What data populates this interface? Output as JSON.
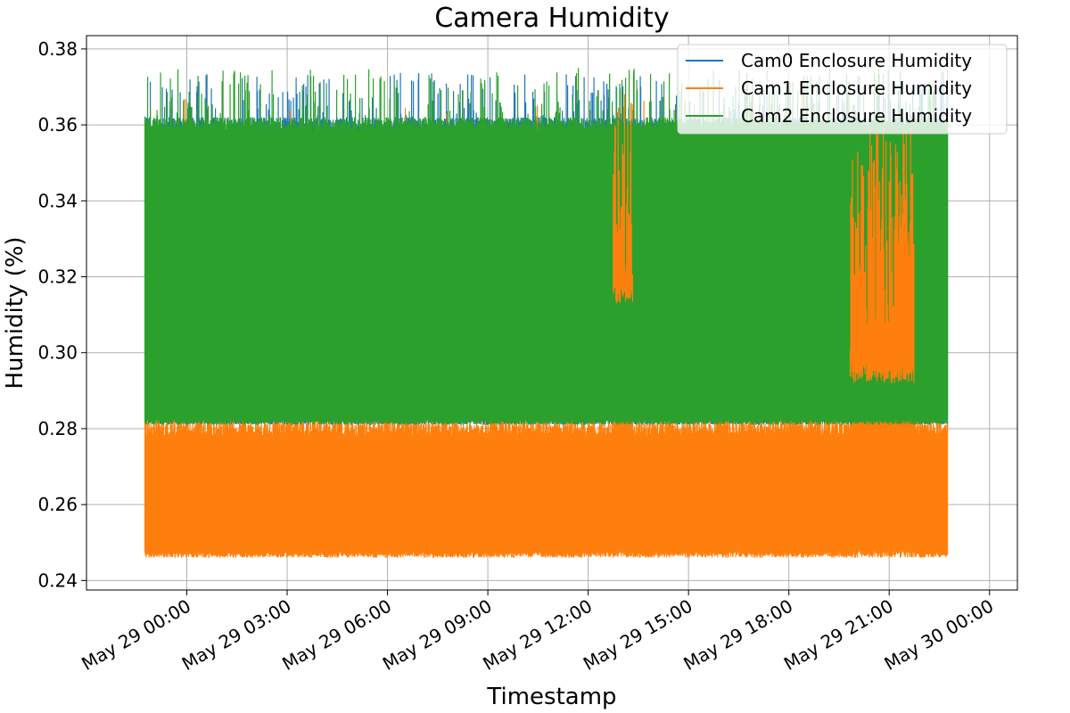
{
  "chart_data": {
    "type": "line",
    "title": "Camera Humidity",
    "xlabel": "Timestamp",
    "ylabel": "Humidity (%)",
    "x_range": [
      "2024-05-28T21:00:00",
      "2024-05-30T00:50:00"
    ],
    "data_x_range": [
      "2024-05-28T22:45:00",
      "2024-05-29T22:45:00"
    ],
    "ylim": [
      0.2375,
      0.3835
    ],
    "x_ticks": [
      {
        "t": "2024-05-29T00:00:00",
        "label": "May 29 00:00"
      },
      {
        "t": "2024-05-29T03:00:00",
        "label": "May 29 03:00"
      },
      {
        "t": "2024-05-29T06:00:00",
        "label": "May 29 06:00"
      },
      {
        "t": "2024-05-29T09:00:00",
        "label": "May 29 09:00"
      },
      {
        "t": "2024-05-29T12:00:00",
        "label": "May 29 12:00"
      },
      {
        "t": "2024-05-29T15:00:00",
        "label": "May 29 15:00"
      },
      {
        "t": "2024-05-29T18:00:00",
        "label": "May 29 18:00"
      },
      {
        "t": "2024-05-29T21:00:00",
        "label": "May 29 21:00"
      },
      {
        "t": "2024-05-30T00:00:00",
        "label": "May 30 00:00"
      }
    ],
    "y_ticks": [
      {
        "v": 0.24,
        "label": "0.24"
      },
      {
        "v": 0.26,
        "label": "0.26"
      },
      {
        "v": 0.28,
        "label": "0.28"
      },
      {
        "v": 0.3,
        "label": "0.30"
      },
      {
        "v": 0.32,
        "label": "0.32"
      },
      {
        "v": 0.34,
        "label": "0.34"
      },
      {
        "v": 0.36,
        "label": "0.36"
      },
      {
        "v": 0.38,
        "label": "0.38"
      }
    ],
    "grid": true,
    "legend_position": "upper-right",
    "series": [
      {
        "name": "Cam0 Enclosure Humidity",
        "color": "#1f77b4",
        "band_low": 0.281,
        "band_high": 0.362,
        "spike_max": 0.374,
        "dip_min": 0.317
      },
      {
        "name": "Cam1 Enclosure Humidity",
        "color": "#ff7f0e",
        "band_low": 0.246,
        "band_high": 0.282,
        "spike_max": 0.369,
        "dip_min": 0.246,
        "excursions": [
          {
            "start": "2024-05-29T12:45:00",
            "end": "2024-05-29T13:20:00",
            "low": 0.318,
            "high": 0.369
          },
          {
            "start": "2024-05-29T19:50:00",
            "end": "2024-05-29T21:45:00",
            "low": 0.297,
            "high": 0.36
          }
        ]
      },
      {
        "name": "Cam2 Enclosure Humidity",
        "color": "#2ca02c",
        "band_low": 0.281,
        "band_high": 0.362,
        "spike_max": 0.375,
        "dip_min": 0.281
      }
    ]
  }
}
